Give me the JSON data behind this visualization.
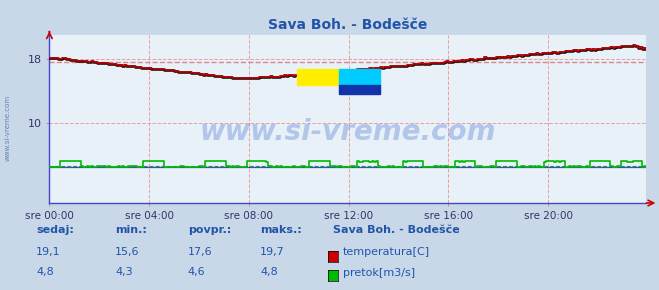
{
  "title": "Sava Boh. - Bodešče",
  "bg_color": "#c8d8e8",
  "plot_bg_color": "#e8f0f8",
  "ylim": [
    0,
    21
  ],
  "xlim": [
    0,
    287
  ],
  "yticks_vals": [
    10,
    18
  ],
  "yticks_labels": [
    "10",
    "18"
  ],
  "xtick_labels": [
    "sre 00:00",
    "sre 04:00",
    "sre 08:00",
    "sre 12:00",
    "sre 16:00",
    "sre 20:00"
  ],
  "xtick_positions": [
    0,
    48,
    96,
    144,
    192,
    240
  ],
  "grid_color": "#e8a0a0",
  "temp_color": "#cc0000",
  "temp_outline_color": "#000000",
  "flow_color": "#00bb00",
  "avg_temp_color": "#dd8888",
  "avg_flow_color": "#00bb00",
  "blue_line_color": "#4444cc",
  "watermark": "www.si-vreme.com",
  "watermark_color": "#3366cc",
  "watermark_alpha": 0.3,
  "sidebar_text": "www.si-vreme.com",
  "sidebar_color": "#4466aa",
  "title_color": "#2255aa",
  "stats_color": "#2255aa",
  "legend_title": "Sava Boh. - Bodešče",
  "stats_labels": [
    "sedaj:",
    "min.:",
    "povpr.:",
    "maks.:"
  ],
  "stats_temp": [
    "19,1",
    "15,6",
    "17,6",
    "19,7"
  ],
  "stats_flow": [
    "4,8",
    "4,3",
    "4,6",
    "4,8"
  ],
  "legend_temp": "temperatura[C]",
  "legend_flow": "pretok[m3/s]",
  "avg_temp": 17.6,
  "avg_flow": 4.6,
  "temp_min": 15.6,
  "temp_max": 19.7,
  "flow_min": 4.3,
  "flow_max": 4.8,
  "n_points": 288
}
